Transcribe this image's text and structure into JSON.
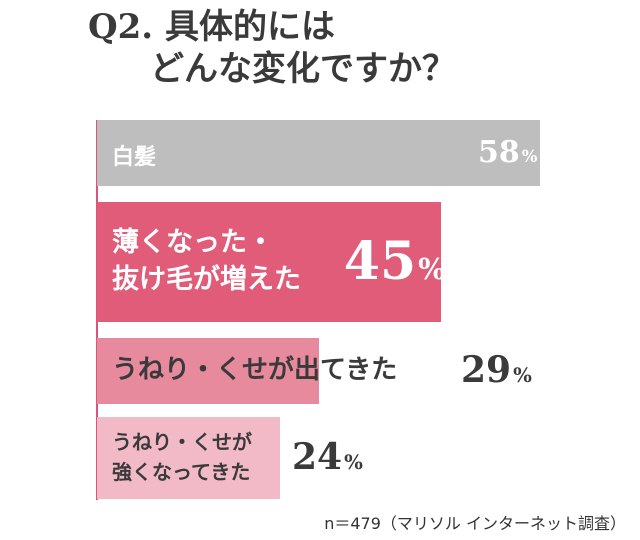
{
  "chart_data": {
    "type": "bar",
    "orientation": "horizontal",
    "title": [
      "Q2. 具体的には",
      "どんな変化ですか？"
    ],
    "categories": [
      "白髪",
      "薄くなった・\n抜け毛が増えた",
      "うねり・くせが出てきた",
      "うねり・くせが\n強くなってきた"
    ],
    "values": [
      58,
      45,
      29,
      24
    ],
    "value_suffix": "%",
    "xlim": [
      0,
      58
    ],
    "colors": [
      "#bebebe",
      "#e05c78",
      "#e88a9e",
      "#f2b9c7"
    ],
    "label_colors": [
      "#ffffff",
      "#ffffff",
      "#3a3a3a",
      "#3a3a3a"
    ],
    "note": "n＝479（マリソル インターネット調査）"
  }
}
